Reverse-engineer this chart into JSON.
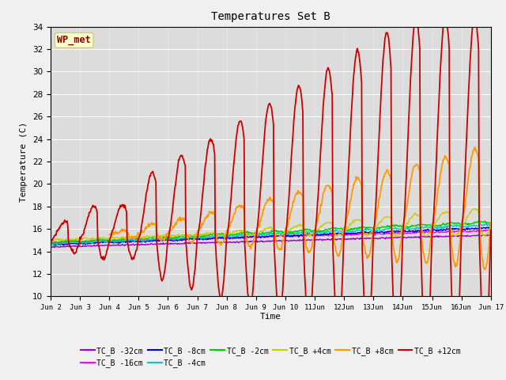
{
  "title": "Temperatures Set B",
  "xlabel": "Time",
  "ylabel": "Temperature (C)",
  "ylim": [
    10,
    34
  ],
  "yticks": [
    10,
    12,
    14,
    16,
    18,
    20,
    22,
    24,
    26,
    28,
    30,
    32,
    34
  ],
  "fig_bg_color": "#f0f0f0",
  "plot_bg_color": "#dcdcdc",
  "annotation_text": "WP_met",
  "annotation_color": "#8B0000",
  "annotation_bg": "#ffffcc",
  "annotation_border": "#cccc88",
  "series_colors": {
    "TC_B -32cm": "#9900cc",
    "TC_B -16cm": "#ff00ff",
    "TC_B -8cm": "#0000cc",
    "TC_B -4cm": "#00cccc",
    "TC_B -2cm": "#00cc00",
    "TC_B +4cm": "#cccc00",
    "TC_B +8cm": "#ff9900",
    "TC_B +12cm": "#cc0000"
  },
  "date_labels": [
    "Jun 2",
    "Jun 3",
    "Jun 4",
    "Jun 5",
    "Jun 6",
    "Jun 7",
    "Jun 8",
    "Jun 9",
    "Jun 10",
    "11Jun",
    "12Jun",
    "13Jun",
    "14Jun",
    "15Jun",
    "16Jun",
    "Jun 17"
  ],
  "n_days": 15,
  "pts_per_day": 48
}
